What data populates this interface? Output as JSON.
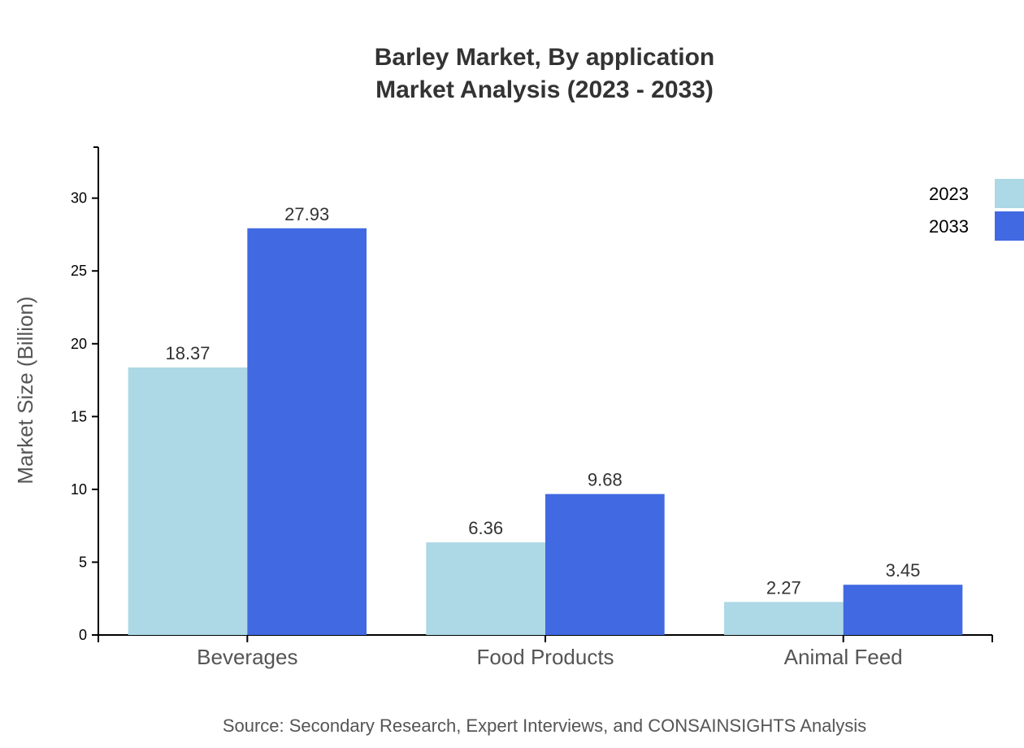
{
  "chart_data": {
    "type": "bar",
    "title": "Barley Market, By application",
    "subtitle": "Market Analysis (2023 - 2033)",
    "xlabel": "",
    "ylabel": "Market Size (Billion)",
    "categories": [
      "Beverages",
      "Food Products",
      "Animal Feed"
    ],
    "series": [
      {
        "name": "2023",
        "values": [
          18.37,
          6.36,
          2.27
        ],
        "color": "#ADD8E6"
      },
      {
        "name": "2033",
        "values": [
          27.93,
          9.68,
          3.45
        ],
        "color": "#4169E1"
      }
    ],
    "ylim": [
      0,
      33.5
    ],
    "yticks": [
      0,
      5,
      10,
      15,
      20,
      25,
      30
    ],
    "grid": false,
    "legend_position": "top-right",
    "source": "Source: Secondary Research, Expert Interviews, and CONSAINSIGHTS Analysis"
  }
}
